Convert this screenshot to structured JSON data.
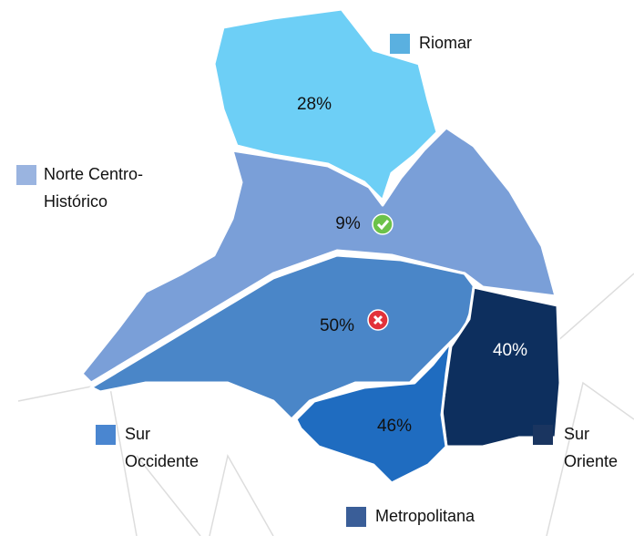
{
  "regions": [
    {
      "name": [
        "Riomar"
      ],
      "value_label": "28%",
      "color": "#6dcff6",
      "legend_color": "#5ab0e0"
    },
    {
      "name": [
        "Norte Centro-",
        "Histórico"
      ],
      "value_label": "9%",
      "color": "#7a9fd8",
      "legend_color": "#9ab4e0"
    },
    {
      "name": [
        "Sur",
        "Occidente"
      ],
      "value_label": "50%",
      "color": "#4a86c8",
      "legend_color": "#4a86d0"
    },
    {
      "name": [
        "Sur",
        "Oriente"
      ],
      "value_label": "40%",
      "color": "#0d2f5e",
      "legend_color": "#1a3560"
    },
    {
      "name": [
        "Metropolitana"
      ],
      "value_label": "46%",
      "color": "#1f6cc0",
      "legend_color": "#3a5e98"
    }
  ]
}
